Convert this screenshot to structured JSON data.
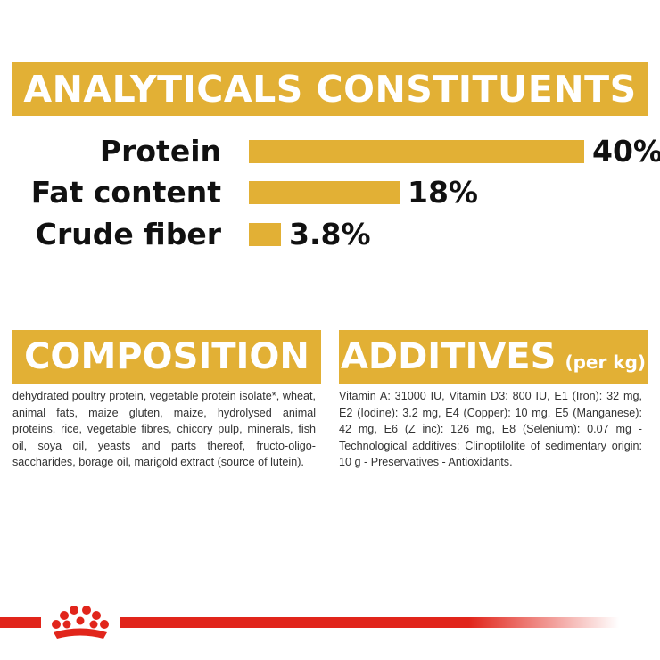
{
  "analytics": {
    "title": "ANALYTICALS CONSTITUENTS",
    "rows": [
      {
        "label": "Protein",
        "value": "40%",
        "percent": 40
      },
      {
        "label": "Fat content",
        "value": "18%",
        "percent": 18
      },
      {
        "label": "Crude fiber",
        "value": "3.8%",
        "percent": 3.8
      }
    ]
  },
  "composition": {
    "title": "COMPOSITION",
    "text": "dehydrated poultry protein, vegetable protein isolate*, wheat, animal fats, maize gluten, maize, hydrolysed animal proteins, rice, vegetable fibres, chicory pulp, minerals, fish oil, soya oil, yeasts and parts thereof, fructo-oligo-saccharides, borage oil, marigold extract (source of lutein)."
  },
  "additives": {
    "title": "ADDITIVES",
    "unit": "(per kg)",
    "text": "Vitamin A: 31000 IU, Vitamin D3: 800 IU, E1 (Iron): 32 mg, E2 (Iodine): 3.2 mg, E4 (Copper): 10 mg, E5 (Manganese): 42 mg, E6 (Z inc): 126 mg, E8 (Selenium): 0.07 mg -Technological additives: Clinoptilolite of sedimentary origin: 10 g - Preservatives - Antioxidants."
  },
  "colors": {
    "accent": "#e2b035",
    "brand_red": "#e1251b"
  },
  "footer": {
    "logo_icon": "crown-icon"
  }
}
